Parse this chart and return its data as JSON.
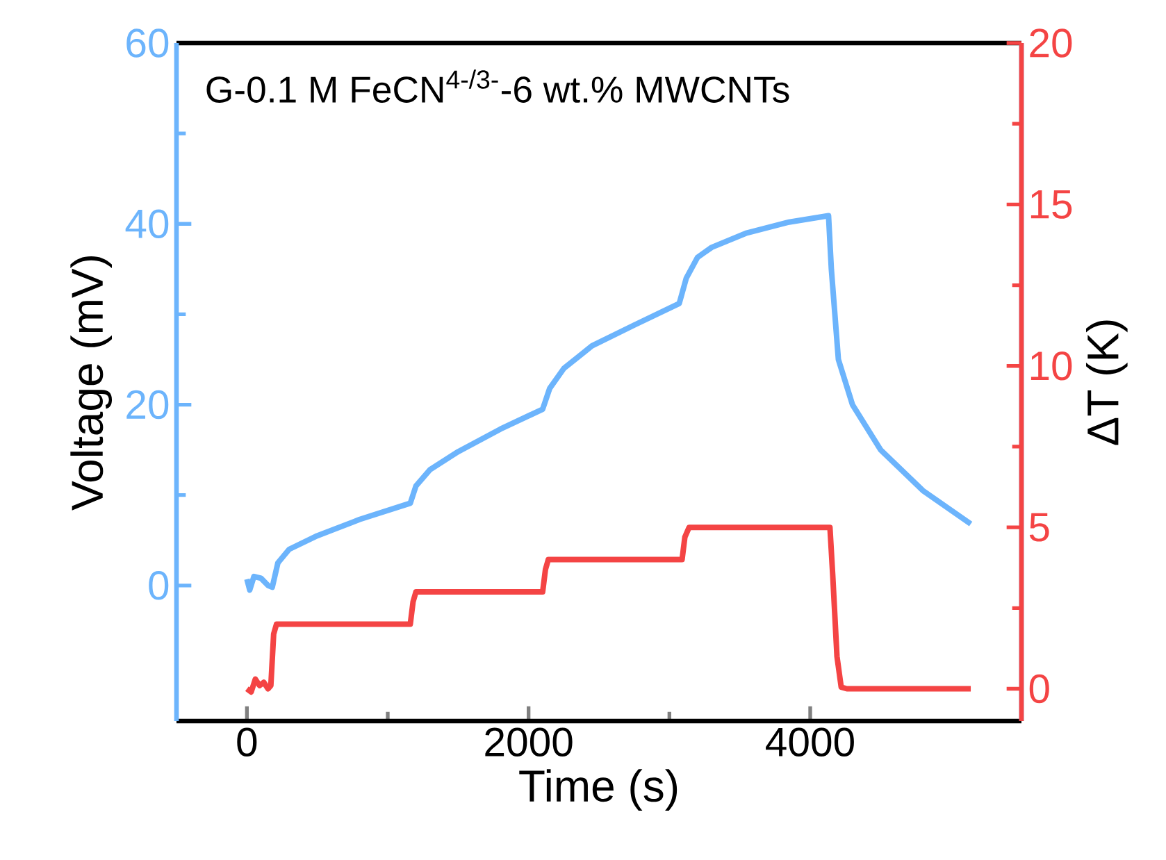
{
  "chart_data": {
    "type": "line",
    "title": "G-0.1 M FeCN$^{4-/3-}$-6 wt.% MWCNTs",
    "xlabel": "Time (s)",
    "ylabel": "Voltage (mV)",
    "y2label": "ΔT (K)",
    "xlim": [
      -500,
      5500
    ],
    "xticks": [
      0,
      2000,
      4000
    ],
    "ylim": [
      -15,
      60
    ],
    "yticks": [
      0,
      20,
      40,
      60
    ],
    "y2lim": [
      -1,
      20
    ],
    "y2ticks": [
      0,
      5,
      10,
      15,
      20
    ],
    "marker": "none",
    "line_style": "solid",
    "series": [
      {
        "color": "#6cb4fc",
        "axis": "y",
        "x": [
          0,
          20,
          50,
          100,
          150,
          180,
          220,
          300,
          500,
          800,
          1160,
          1200,
          1300,
          1500,
          1800,
          2100,
          2150,
          2250,
          2450,
          2750,
          3070,
          3120,
          3200,
          3300,
          3550,
          3850,
          4130,
          4150,
          4200,
          4300,
          4500,
          4800,
          5140
        ],
        "values": [
          0.7,
          -0.5,
          1,
          0.8,
          0,
          -0.2,
          2.5,
          4,
          5.5,
          7.3,
          9.1,
          11,
          12.8,
          14.8,
          17.3,
          19.5,
          21.8,
          24,
          26.5,
          28.8,
          31.2,
          34,
          36.3,
          37.4,
          39,
          40.2,
          40.9,
          35,
          25,
          20,
          15,
          10.5,
          6.8
        ]
      },
      {
        "color": "#f44444",
        "axis": "y2",
        "x": [
          0,
          30,
          60,
          90,
          120,
          150,
          170,
          190,
          210,
          1160,
          1180,
          1200,
          2100,
          2120,
          2140,
          3090,
          3110,
          3140,
          4140,
          4160,
          4190,
          4220,
          4260,
          5140
        ],
        "values": [
          0,
          -0.1,
          0.3,
          0.1,
          0.2,
          0,
          0.1,
          1.7,
          2,
          2,
          2.7,
          3,
          3,
          3.7,
          4,
          4,
          4.7,
          5,
          5,
          3.5,
          1,
          0.05,
          0,
          0
        ]
      }
    ]
  }
}
